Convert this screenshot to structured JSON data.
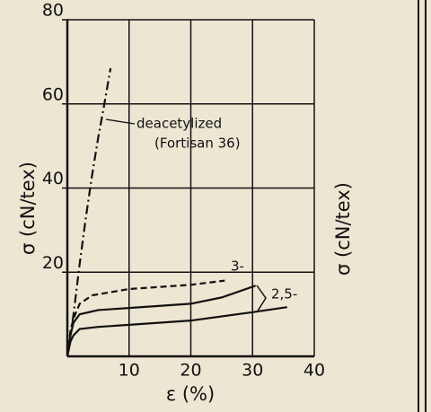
{
  "chart_data": {
    "type": "line",
    "xlabel": "ε (%)",
    "ylabel": "σ (cN/tex)",
    "right_label": "σ (cN/tex)",
    "xlim": [
      0,
      40
    ],
    "xticks": [
      10,
      20,
      30,
      40
    ],
    "ylim": [
      0,
      80
    ],
    "yticks": [
      20,
      40,
      60,
      80
    ],
    "grid": true,
    "series": [
      {
        "style": "dashdot",
        "color": "#111111",
        "x": [
          0,
          1,
          2,
          3,
          4,
          5,
          6,
          7
        ],
        "values": [
          0,
          10,
          22,
          33,
          43,
          52,
          60,
          68.5
        ]
      },
      {
        "style": "dashed",
        "color": "#111111",
        "x": [
          0,
          0.5,
          1,
          2,
          4,
          10,
          20,
          25.5
        ],
        "values": [
          0,
          6,
          9,
          12.5,
          14.5,
          16,
          17,
          18
        ]
      },
      {
        "style": "solid",
        "color": "#111111",
        "x": [
          0,
          0.5,
          1,
          2,
          5,
          10,
          20,
          25,
          30.5
        ],
        "values": [
          0,
          5,
          8,
          10,
          11,
          11.5,
          12.5,
          14,
          16.8
        ]
      },
      {
        "style": "solid",
        "color": "#111111",
        "x": [
          0,
          0.5,
          1,
          2,
          5,
          10,
          20,
          30,
          35.6
        ],
        "values": [
          0,
          3.5,
          5,
          6.5,
          7,
          7.5,
          8.5,
          10.5,
          11.7
        ]
      }
    ],
    "annotations": [
      "deacetylized",
      "(Fortisan 36)",
      "3-",
      "2,5-"
    ]
  }
}
